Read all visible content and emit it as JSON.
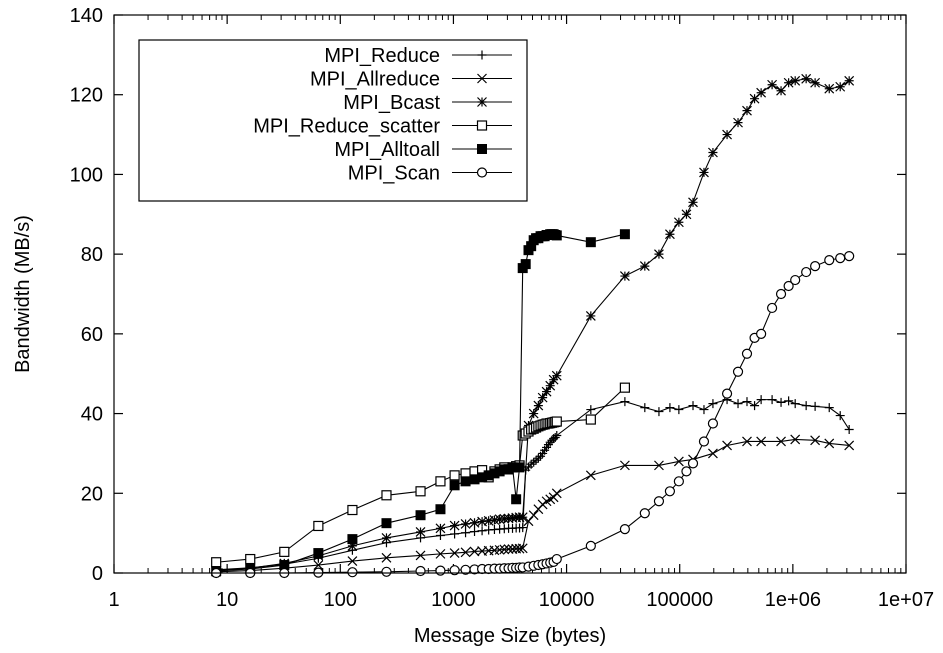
{
  "chart_data": {
    "type": "line",
    "title": "",
    "xlabel": "Message Size (bytes)",
    "ylabel": "Bandwidth (MB/s)",
    "xscale": "log",
    "xlim": [
      1,
      10000000
    ],
    "ylim": [
      0,
      140
    ],
    "xticks": [
      {
        "value": 1,
        "label": "1"
      },
      {
        "value": 10,
        "label": "10"
      },
      {
        "value": 100,
        "label": "100"
      },
      {
        "value": 1000,
        "label": "1000"
      },
      {
        "value": 10000,
        "label": "10000"
      },
      {
        "value": 100000,
        "label": "100000"
      },
      {
        "value": 1000000,
        "label": "1e+06"
      },
      {
        "value": 10000000,
        "label": "1e+07"
      }
    ],
    "yticks": [
      {
        "value": 0,
        "label": "0"
      },
      {
        "value": 20,
        "label": "20"
      },
      {
        "value": 40,
        "label": "40"
      },
      {
        "value": 60,
        "label": "60"
      },
      {
        "value": 80,
        "label": "80"
      },
      {
        "value": 100,
        "label": "100"
      },
      {
        "value": 120,
        "label": "120"
      },
      {
        "value": 140,
        "label": "140"
      }
    ],
    "grid": false,
    "legend_position": "top-left",
    "series": [
      {
        "name": "MPI_Reduce",
        "marker": "plus",
        "x": [
          8,
          16,
          32,
          64,
          128,
          256,
          512,
          768,
          1024,
          1280,
          1536,
          1792,
          2048,
          2304,
          2560,
          2816,
          3072,
          3328,
          3584,
          3840,
          4096,
          4352,
          4608,
          4864,
          5120,
          5376,
          5632,
          5888,
          6144,
          6400,
          6656,
          6912,
          7168,
          7424,
          7680,
          7936,
          8192,
          16384,
          32768,
          49152,
          65536,
          81920,
          98304,
          131072,
          163840,
          196608,
          262144,
          327680,
          393216,
          458752,
          524288,
          655360,
          786432,
          917504,
          1048576,
          1310720,
          1572864,
          2097152,
          2621440,
          3145728
        ],
        "y": [
          0.8,
          1.3,
          2.2,
          3.7,
          5.7,
          7.6,
          8.8,
          9.4,
          9.8,
          10.1,
          10.4,
          10.6,
          10.8,
          10.9,
          11.0,
          11.1,
          11.2,
          11.2,
          11.3,
          11.3,
          11.4,
          25.8,
          26.6,
          27.3,
          27.8,
          28.3,
          28.8,
          29.3,
          30.0,
          30.8,
          31.5,
          32.2,
          32.8,
          33.3,
          33.7,
          34.0,
          34.5,
          41.0,
          43.0,
          41.5,
          40.5,
          41.5,
          41.0,
          42.0,
          41.0,
          42.5,
          43.5,
          42.5,
          43.0,
          42.0,
          43.5,
          43.5,
          42.8,
          43.2,
          42.5,
          42.0,
          41.8,
          41.5,
          39.5,
          36.0
        ]
      },
      {
        "name": "MPI_Allreduce",
        "marker": "x",
        "x": [
          8,
          16,
          32,
          64,
          128,
          256,
          512,
          768,
          1024,
          1280,
          1536,
          1792,
          2048,
          2304,
          2560,
          2816,
          3072,
          3328,
          3584,
          3840,
          4096,
          4608,
          5120,
          5632,
          6144,
          6656,
          7168,
          7680,
          8192,
          16384,
          32768,
          65536,
          98304,
          131072,
          196608,
          262144,
          393216,
          524288,
          786432,
          1048576,
          1572864,
          2097152,
          3145728
        ],
        "y": [
          0.3,
          0.6,
          1.2,
          2.0,
          3.0,
          3.8,
          4.4,
          4.8,
          5.0,
          5.2,
          5.4,
          5.5,
          5.6,
          5.7,
          5.8,
          5.9,
          6.0,
          6.0,
          6.1,
          6.1,
          6.2,
          13.0,
          14.5,
          16.0,
          17.2,
          18.0,
          18.5,
          19.0,
          20.0,
          24.5,
          27.0,
          27.0,
          28.0,
          28.5,
          30.0,
          32.0,
          33.0,
          33.0,
          33.0,
          33.5,
          33.3,
          32.5,
          32.0
        ]
      },
      {
        "name": "MPI_Bcast",
        "marker": "star",
        "x": [
          8,
          16,
          32,
          64,
          128,
          256,
          512,
          768,
          1024,
          1280,
          1536,
          1792,
          2048,
          2304,
          2560,
          2816,
          3072,
          3328,
          3584,
          3840,
          4096,
          4608,
          5120,
          5632,
          6144,
          6656,
          7168,
          7680,
          8192,
          16384,
          32768,
          49152,
          65536,
          81920,
          98304,
          114688,
          131072,
          163840,
          196608,
          262144,
          327680,
          393216,
          458752,
          524288,
          655360,
          786432,
          917504,
          1048576,
          1310720,
          1572864,
          2097152,
          2621440,
          3145728
        ],
        "y": [
          0.6,
          1.2,
          2.4,
          4.3,
          6.8,
          8.8,
          10.3,
          11.2,
          11.9,
          12.3,
          12.6,
          12.9,
          13.1,
          13.3,
          13.5,
          13.6,
          13.7,
          13.8,
          13.9,
          14.0,
          14.0,
          37.0,
          40.0,
          42.0,
          44.0,
          45.5,
          47.0,
          48.5,
          49.5,
          64.5,
          74.5,
          77.0,
          80.0,
          85.0,
          88.0,
          90.0,
          93.0,
          100.5,
          105.5,
          110.0,
          113.0,
          116.0,
          119.0,
          120.5,
          122.5,
          121.0,
          123.0,
          123.5,
          124.0,
          123.0,
          121.5,
          122.0,
          123.5
        ]
      },
      {
        "name": "MPI_Reduce_scatter",
        "marker": "open-square",
        "x": [
          8,
          16,
          32,
          64,
          128,
          256,
          512,
          768,
          1024,
          1280,
          1536,
          1792,
          2048,
          2304,
          2560,
          2816,
          3072,
          3328,
          3584,
          3840,
          4096,
          4352,
          4608,
          4864,
          5120,
          5376,
          5632,
          5888,
          6144,
          6400,
          6656,
          6912,
          7168,
          7424,
          7680,
          7936,
          8192,
          16384,
          32768
        ],
        "y": [
          2.7,
          3.5,
          5.3,
          11.8,
          15.8,
          19.5,
          20.5,
          23.0,
          24.5,
          25.0,
          25.5,
          25.8,
          24.0,
          25.5,
          26.0,
          26.5,
          26.0,
          26.5,
          26.8,
          27.0,
          34.5,
          35.0,
          35.5,
          36.0,
          36.2,
          36.5,
          36.8,
          37.0,
          37.2,
          37.3,
          37.5,
          37.5,
          37.6,
          37.7,
          37.8,
          37.9,
          38.0,
          38.5,
          46.5
        ]
      },
      {
        "name": "MPI_Alltoall",
        "marker": "filled-square",
        "x": [
          8,
          16,
          32,
          64,
          128,
          256,
          512,
          768,
          1024,
          1280,
          1536,
          1792,
          2048,
          2304,
          2560,
          2816,
          3072,
          3328,
          3584,
          3840,
          4096,
          4352,
          4608,
          4864,
          5120,
          5376,
          5632,
          5888,
          6144,
          6400,
          6656,
          6912,
          7168,
          7424,
          7680,
          7936,
          8192,
          16384,
          32768
        ],
        "y": [
          0.5,
          1.0,
          2.0,
          5.0,
          8.5,
          12.5,
          14.5,
          16.0,
          22.0,
          23.0,
          23.5,
          24.0,
          24.5,
          25.0,
          25.5,
          26.0,
          26.0,
          26.5,
          18.5,
          26.5,
          76.5,
          77.5,
          81.0,
          82.0,
          83.5,
          84.0,
          84.0,
          84.5,
          84.5,
          84.5,
          84.8,
          84.8,
          85.0,
          85.0,
          85.0,
          84.8,
          84.7,
          83.0,
          85.0
        ]
      },
      {
        "name": "MPI_Scan",
        "marker": "open-circle",
        "x": [
          8,
          16,
          32,
          64,
          128,
          256,
          512,
          768,
          1024,
          1280,
          1536,
          1792,
          2048,
          2304,
          2560,
          2816,
          3072,
          3328,
          3584,
          3840,
          4096,
          4608,
          5120,
          5632,
          6144,
          6656,
          7168,
          7680,
          8192,
          16384,
          32768,
          49152,
          65536,
          81920,
          98304,
          114688,
          131072,
          163840,
          196608,
          262144,
          327680,
          393216,
          458752,
          524288,
          655360,
          786432,
          917504,
          1048576,
          1310720,
          1572864,
          2097152,
          2621440,
          3145728
        ],
        "y": [
          0.0,
          0.0,
          0.0,
          0.1,
          0.2,
          0.3,
          0.5,
          0.6,
          0.7,
          0.8,
          0.9,
          1.0,
          1.0,
          1.1,
          1.1,
          1.2,
          1.2,
          1.3,
          1.3,
          1.4,
          1.4,
          1.6,
          1.8,
          2.0,
          2.2,
          2.4,
          2.6,
          2.8,
          3.5,
          6.8,
          11.0,
          15.0,
          18.0,
          20.5,
          23.0,
          25.5,
          27.5,
          33.0,
          37.5,
          45.0,
          50.5,
          55.0,
          59.0,
          60.0,
          66.5,
          70.0,
          72.0,
          73.5,
          75.5,
          77.0,
          78.5,
          79.0,
          79.5
        ]
      }
    ]
  }
}
